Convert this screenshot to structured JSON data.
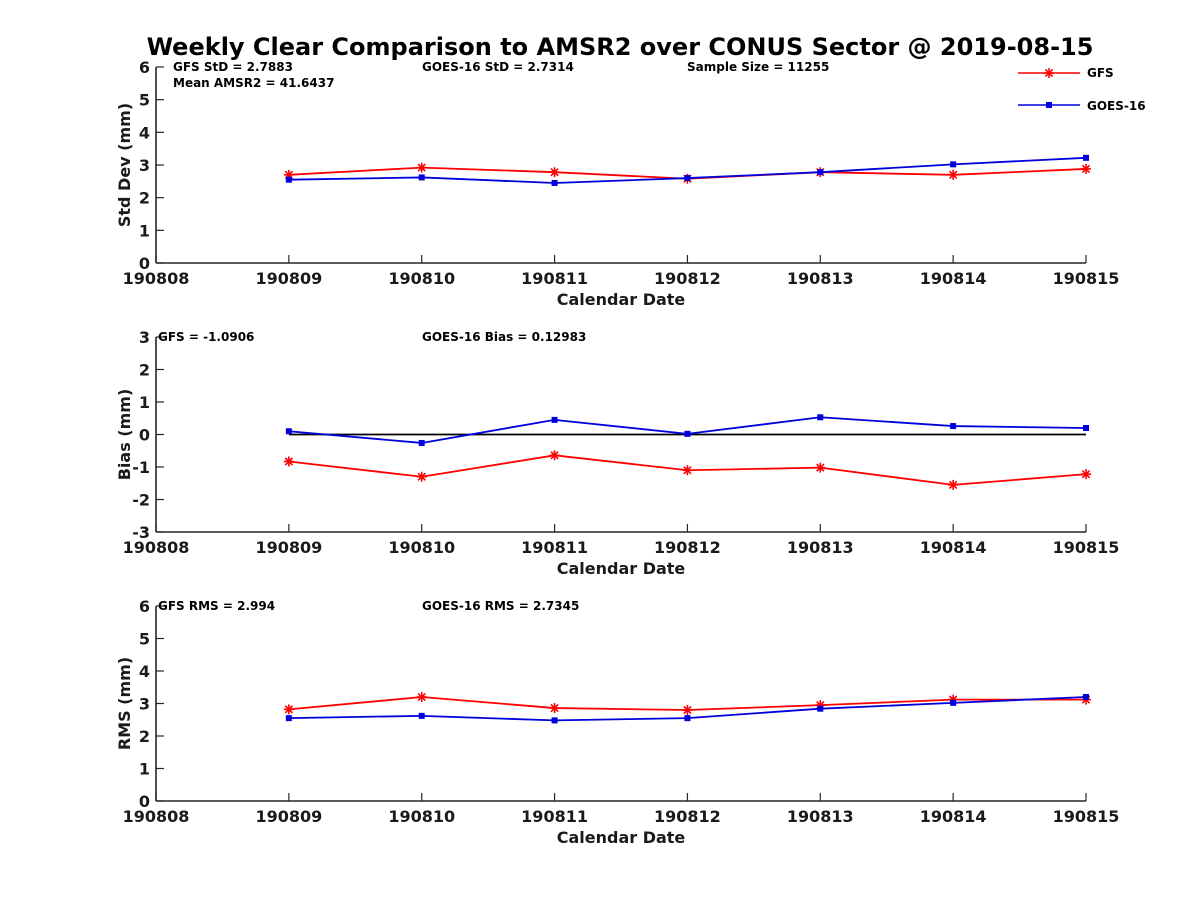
{
  "figure": {
    "title": "Weekly Clear Comparison to AMSR2 over CONUS Sector @ 2019-08-15"
  },
  "legend": {
    "placement": "top-right",
    "entries": [
      {
        "name": "GFS",
        "color": "#ff0000",
        "marker": "asterisk"
      },
      {
        "name": "GOES-16",
        "color": "#0000dd",
        "marker": "square"
      }
    ]
  },
  "annotations": {
    "panel1": {
      "gfs_std": "GFS StD = 2.7883",
      "mean_amsr2": "Mean AMSR2 = 41.6437",
      "goes_std": "GOES-16 StD = 2.7314",
      "sample_size": "Sample Size = 11255"
    },
    "panel2": {
      "gfs_bias": "GFS = -1.0906",
      "goes_bias": "GOES-16 Bias  = 0.12983"
    },
    "panel3": {
      "gfs_rms": "GFS RMS = 2.994",
      "goes_rms": "GOES-16 RMS = 2.7345"
    }
  },
  "colors": {
    "gfs": "#ff0000",
    "goes": "#0000dd",
    "zero_line": "#000000",
    "axis": "#262626"
  },
  "chart_data": [
    {
      "type": "line",
      "categories": [
        "190808",
        "190809",
        "190810",
        "190811",
        "190812",
        "190813",
        "190814",
        "190815"
      ],
      "ylabel": "Std Dev (mm)",
      "xlabel": "Calendar Date",
      "ylim": [
        0,
        6
      ],
      "yticks": [
        0,
        1,
        2,
        3,
        4,
        5,
        6
      ],
      "grid": false,
      "series": [
        {
          "name": "GFS",
          "values": [
            null,
            2.7,
            2.92,
            2.78,
            2.58,
            2.78,
            2.7,
            2.88
          ]
        },
        {
          "name": "GOES-16",
          "values": [
            null,
            2.55,
            2.62,
            2.45,
            2.6,
            2.78,
            3.02,
            3.22
          ]
        }
      ]
    },
    {
      "type": "line",
      "categories": [
        "190808",
        "190809",
        "190810",
        "190811",
        "190812",
        "190813",
        "190814",
        "190815"
      ],
      "ylabel": "Bias (mm)",
      "xlabel": "Calendar Date",
      "ylim": [
        -3,
        3
      ],
      "yticks": [
        -3,
        -2,
        -1,
        0,
        1,
        2,
        3
      ],
      "grid": false,
      "zero_line": true,
      "series": [
        {
          "name": "GFS",
          "values": [
            null,
            -0.83,
            -1.3,
            -0.64,
            -1.1,
            -1.02,
            -1.55,
            -1.22
          ]
        },
        {
          "name": "GOES-16",
          "values": [
            null,
            0.1,
            -0.26,
            0.45,
            0.02,
            0.53,
            0.26,
            0.2
          ]
        }
      ]
    },
    {
      "type": "line",
      "categories": [
        "190808",
        "190809",
        "190810",
        "190811",
        "190812",
        "190813",
        "190814",
        "190815"
      ],
      "ylabel": "RMS (mm)",
      "xlabel": "Calendar Date",
      "ylim": [
        0,
        6
      ],
      "yticks": [
        0,
        1,
        2,
        3,
        4,
        5,
        6
      ],
      "grid": false,
      "series": [
        {
          "name": "GFS",
          "values": [
            null,
            2.82,
            3.2,
            2.86,
            2.8,
            2.95,
            3.12,
            3.12
          ]
        },
        {
          "name": "GOES-16",
          "values": [
            null,
            2.55,
            2.62,
            2.48,
            2.55,
            2.84,
            3.02,
            3.2
          ]
        }
      ]
    }
  ]
}
